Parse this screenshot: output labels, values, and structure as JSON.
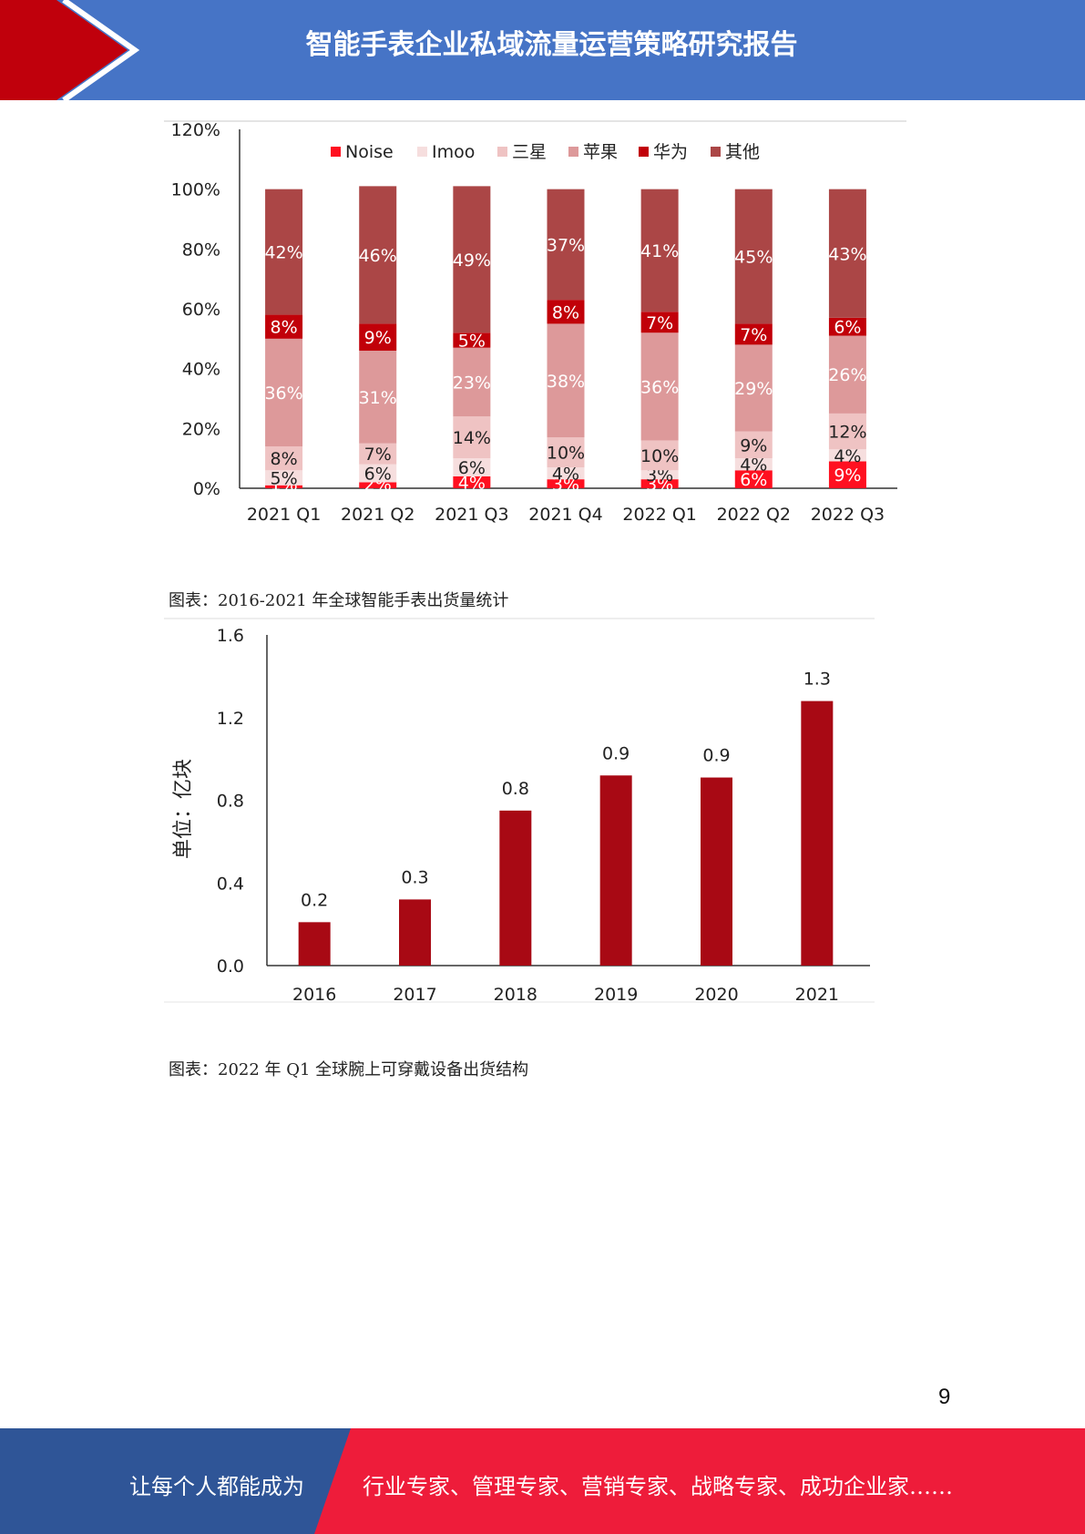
{
  "header": {
    "title": "智能手表企业私域流量运营策略研究报告"
  },
  "chart_data": [
    {
      "type": "bar",
      "stacked": true,
      "percent": true,
      "categories": [
        "2021 Q1",
        "2021 Q2",
        "2021 Q3",
        "2021 Q4",
        "2022 Q1",
        "2022 Q2",
        "2022 Q3"
      ],
      "ylim": [
        0,
        120
      ],
      "yticks": [
        "0%",
        "20%",
        "40%",
        "60%",
        "80%",
        "100%",
        "120%"
      ],
      "legend_position": "top",
      "series": [
        {
          "name": "Noise",
          "color": "#ff1020",
          "values": [
            1,
            2,
            4,
            3,
            3,
            6,
            9
          ],
          "labels": [
            "1%",
            "2%",
            "4%",
            "3%",
            "3%",
            "6%",
            "9%"
          ]
        },
        {
          "name": "Imoo",
          "color": "#f6dede",
          "values": [
            5,
            6,
            6,
            4,
            3,
            4,
            4
          ],
          "labels": [
            "5%",
            "6%",
            "6%",
            "4%",
            "3%",
            "4%",
            "4%"
          ]
        },
        {
          "name": "三星",
          "color": "#efc3c3",
          "values": [
            8,
            7,
            14,
            10,
            10,
            9,
            12
          ],
          "labels": [
            "8%",
            "7%",
            "14%",
            "10%",
            "10%",
            "9%",
            "12%"
          ]
        },
        {
          "name": "苹果",
          "color": "#dd999a",
          "values": [
            36,
            31,
            23,
            38,
            36,
            29,
            26
          ],
          "labels": [
            "36%",
            "31%",
            "23%",
            "38%",
            "36%",
            "29%",
            "26%"
          ]
        },
        {
          "name": "华为",
          "color": "#c10009",
          "values": [
            8,
            9,
            5,
            8,
            7,
            7,
            6
          ],
          "labels": [
            "8%",
            "9%",
            "5%",
            "8%",
            "7%",
            "7%",
            "6%"
          ]
        },
        {
          "name": "其他",
          "color": "#ab4646",
          "values": [
            42,
            46,
            49,
            37,
            41,
            45,
            43
          ],
          "labels": [
            "42%",
            "46%",
            "49%",
            "37%",
            "41%",
            "45%",
            "43%"
          ]
        }
      ]
    },
    {
      "type": "bar",
      "title": "图表：2016-2021 年全球智能手表出货量统计",
      "categories": [
        "2016",
        "2017",
        "2018",
        "2019",
        "2020",
        "2021"
      ],
      "values": [
        0.21,
        0.32,
        0.75,
        0.92,
        0.91,
        1.28
      ],
      "labels": [
        "0.2",
        "0.3",
        "0.8",
        "0.9",
        "0.9",
        "1.3"
      ],
      "ylabel": "单位：亿块",
      "ylim": [
        0,
        1.6
      ],
      "yticks": [
        "0.0",
        "0.4",
        "0.8",
        "1.2",
        "1.6"
      ],
      "color": "#a80914"
    }
  ],
  "captions": {
    "chart2": "图表：2016-2021 年全球智能手表出货量统计",
    "next": "图表：2022 年 Q1 全球腕上可穿戴设备出货结构"
  },
  "page_number": "9",
  "footer": {
    "left": "让每个人都能成为",
    "right": "行业专家、管理专家、营销专家、战略专家、成功企业家……"
  },
  "colors": {
    "header_bg": "#4674c6",
    "header_accent": "#c0000c",
    "footer_left": "#2f5597",
    "footer_right": "#ee1c3a"
  }
}
